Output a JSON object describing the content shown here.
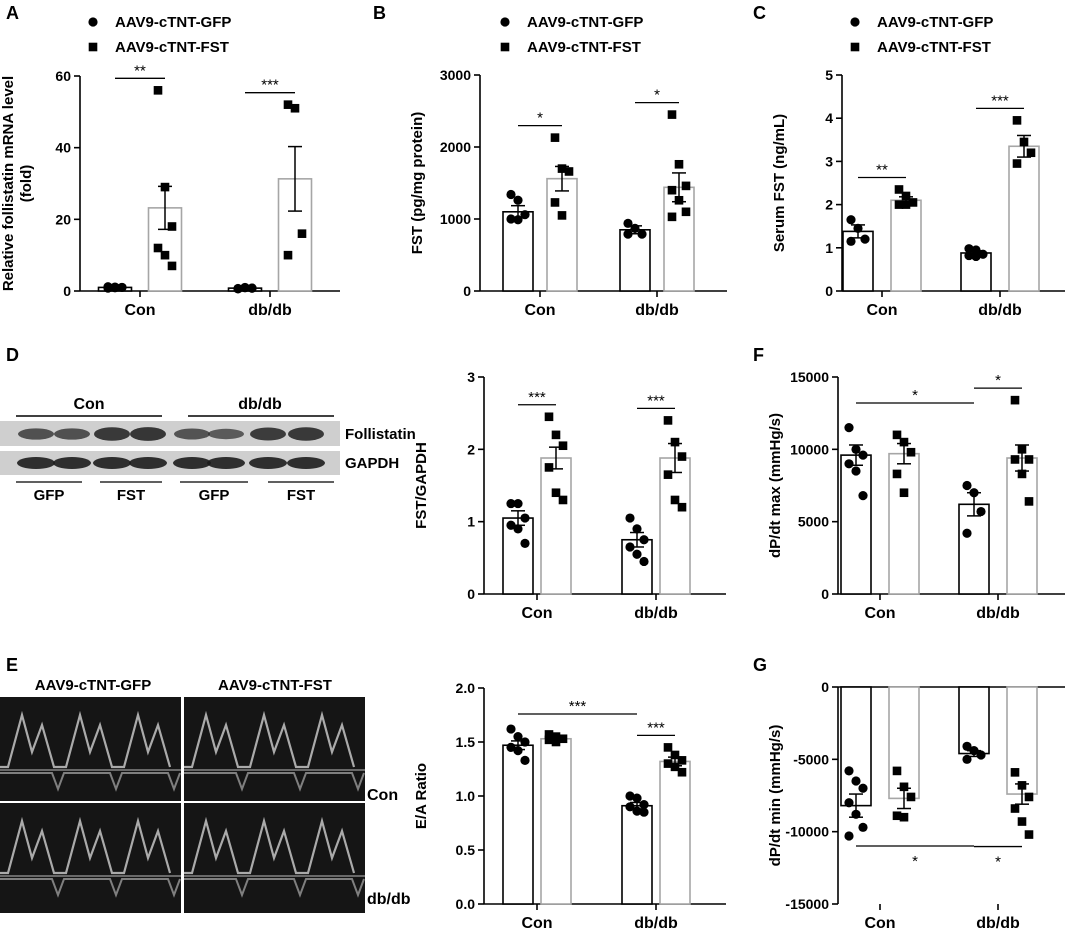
{
  "legend": {
    "gfp": "AAV9-cTNT-GFP",
    "fst": "AAV9-cTNT-FST"
  },
  "colors": {
    "ink": "#000000",
    "gfp_bar": "#000000",
    "fst_bar": "#a6a6a6",
    "blot_bg": "#cfcfcf",
    "echo_bg": "#151515"
  },
  "western": {
    "group_labels": [
      "Con",
      "db/db"
    ],
    "bands": [
      "Follistatin",
      "GAPDH"
    ],
    "lane_labels": [
      "GFP",
      "FST",
      "GFP",
      "FST"
    ]
  },
  "echo": {
    "col_titles": [
      "AAV9-cTNT-GFP",
      "AAV9-cTNT-FST"
    ],
    "row_labels": [
      "Con",
      "db/db"
    ]
  },
  "chart_data": [
    {
      "panel": "A",
      "type": "bar",
      "ylabel": "Relative follistatin mRNA level\n(fold)",
      "categories": [
        "Con",
        "db/db"
      ],
      "ylim": [
        0,
        60
      ],
      "yticks": [
        "0",
        "20",
        "40",
        "60"
      ],
      "legend": true,
      "series": [
        {
          "name": "AAV9-cTNT-GFP",
          "values": [
            1,
            0.8
          ],
          "sem": [
            0.2,
            0.2
          ],
          "points": [
            [
              1.2,
              0.9,
              1.0,
              0.8,
              1.1,
              1.0
            ],
            [
              0.7,
              0.9,
              0.8,
              0.6,
              1.0,
              0.8
            ]
          ]
        },
        {
          "name": "AAV9-cTNT-FST",
          "values": [
            23.2,
            31.3
          ],
          "sem": [
            6.0,
            9.0
          ],
          "points": [
            [
              56,
              29,
              18,
              12,
              10,
              7
            ],
            [
              52,
              51,
              16,
              10
            ]
          ]
        }
      ],
      "significance": [
        {
          "category": "Con",
          "label": "**"
        },
        {
          "category": "db/db",
          "label": "***"
        }
      ]
    },
    {
      "panel": "B",
      "type": "bar",
      "ylabel": "FST (pg/mg protein)",
      "categories": [
        "Con",
        "db/db"
      ],
      "ylim": [
        0,
        3000
      ],
      "yticks": [
        "0",
        "1000",
        "2000",
        "3000"
      ],
      "legend": true,
      "series": [
        {
          "name": "AAV9-cTNT-GFP",
          "values": [
            1100,
            850
          ],
          "sem": [
            85,
            55
          ],
          "points": [
            [
              1340,
              1260,
              1060,
              1000,
              990
            ],
            [
              940,
              870,
              790,
              790
            ]
          ]
        },
        {
          "name": "AAV9-cTNT-FST",
          "values": [
            1560,
            1440
          ],
          "sem": [
            170,
            200
          ],
          "points": [
            [
              2130,
              1700,
              1660,
              1230,
              1050
            ],
            [
              2450,
              1760,
              1460,
              1400,
              1260,
              1100,
              1030
            ]
          ]
        }
      ],
      "significance": [
        {
          "category": "Con",
          "label": "*"
        },
        {
          "category": "db/db",
          "label": "*"
        }
      ]
    },
    {
      "panel": "C",
      "type": "bar",
      "ylabel": "Serum FST (ng/mL)",
      "categories": [
        "Con",
        "db/db"
      ],
      "ylim": [
        0,
        5
      ],
      "yticks": [
        "0",
        "1",
        "2",
        "3",
        "4",
        "5"
      ],
      "legend": true,
      "series": [
        {
          "name": "AAV9-cTNT-GFP",
          "values": [
            1.38,
            0.88
          ],
          "sem": [
            0.15,
            0.05
          ],
          "points": [
            [
              1.65,
              1.45,
              1.2,
              1.15
            ],
            [
              0.98,
              0.95,
              0.85,
              0.82,
              0.8
            ]
          ]
        },
        {
          "name": "AAV9-cTNT-FST",
          "values": [
            2.1,
            3.35
          ],
          "sem": [
            0.08,
            0.25
          ],
          "points": [
            [
              2.35,
              2.2,
              2.05,
              2.0,
              2.0
            ],
            [
              3.95,
              3.45,
              3.2,
              2.95
            ]
          ]
        }
      ],
      "significance": [
        {
          "category": "Con",
          "label": "**"
        },
        {
          "category": "db/db",
          "label": "***"
        }
      ]
    },
    {
      "panel": "D",
      "type": "bar",
      "ylabel": "FST/GAPDH",
      "categories": [
        "Con",
        "db/db"
      ],
      "ylim": [
        0,
        3
      ],
      "yticks": [
        "0",
        "1",
        "2",
        "3"
      ],
      "legend": false,
      "series": [
        {
          "name": "AAV9-cTNT-GFP",
          "values": [
            1.05,
            0.75
          ],
          "sem": [
            0.1,
            0.1
          ],
          "points": [
            [
              1.25,
              1.25,
              1.05,
              0.95,
              0.9,
              0.7
            ],
            [
              1.05,
              0.9,
              0.75,
              0.65,
              0.55,
              0.45
            ]
          ]
        },
        {
          "name": "AAV9-cTNT-FST",
          "values": [
            1.88,
            1.88
          ],
          "sem": [
            0.15,
            0.2
          ],
          "points": [
            [
              2.45,
              2.2,
              2.05,
              1.75,
              1.4,
              1.3
            ],
            [
              2.4,
              2.1,
              1.9,
              1.65,
              1.3,
              1.2
            ]
          ]
        }
      ],
      "significance": [
        {
          "category": "Con",
          "label": "***"
        },
        {
          "category": "db/db",
          "label": "***"
        }
      ]
    },
    {
      "panel": "F",
      "type": "bar",
      "ylabel": "dP/dt max (mmHg/s)",
      "categories": [
        "Con",
        "db/db"
      ],
      "ylim": [
        0,
        15000
      ],
      "yticks": [
        "0",
        "5000",
        "10000",
        "15000"
      ],
      "legend": false,
      "series": [
        {
          "name": "AAV9-cTNT-GFP",
          "values": [
            9600,
            6200
          ],
          "sem": [
            700,
            800
          ],
          "points": [
            [
              11500,
              10000,
              9600,
              9000,
              8500,
              6800
            ],
            [
              7500,
              7000,
              5700,
              4200
            ]
          ]
        },
        {
          "name": "AAV9-cTNT-FST",
          "values": [
            9700,
            9400
          ],
          "sem": [
            700,
            900
          ],
          "points": [
            [
              11000,
              10500,
              9800,
              8300,
              7000
            ],
            [
              13400,
              10000,
              9300,
              9300,
              8300,
              6400
            ]
          ]
        }
      ],
      "significance": [
        {
          "type": "between-groups",
          "label": "*"
        },
        {
          "category": "db/db",
          "label": "*"
        }
      ]
    },
    {
      "panel": "E",
      "type": "bar",
      "ylabel": "E/A Ratio",
      "categories": [
        "Con",
        "db/db"
      ],
      "ylim": [
        0,
        2
      ],
      "yticks": [
        "0.0",
        "0.5",
        "1.0",
        "1.5",
        "2.0"
      ],
      "legend": false,
      "series": [
        {
          "name": "AAV9-cTNT-GFP",
          "values": [
            1.47,
            0.91
          ],
          "sem": [
            0.04,
            0.03
          ],
          "points": [
            [
              1.62,
              1.55,
              1.5,
              1.45,
              1.42,
              1.33
            ],
            [
              1.0,
              0.98,
              0.92,
              0.9,
              0.86,
              0.85
            ]
          ]
        },
        {
          "name": "AAV9-cTNT-FST",
          "values": [
            1.53,
            1.32
          ],
          "sem": [
            0.02,
            0.04
          ],
          "points": [
            [
              1.57,
              1.55,
              1.53,
              1.52,
              1.5
            ],
            [
              1.45,
              1.38,
              1.33,
              1.3,
              1.27,
              1.22
            ]
          ]
        }
      ],
      "significance": [
        {
          "type": "between-groups",
          "label": "***"
        },
        {
          "category": "db/db",
          "label": "***"
        }
      ]
    },
    {
      "panel": "G",
      "type": "bar",
      "ylabel": "dP/dt min (mmHg/s)",
      "categories": [
        "Con",
        "db/db"
      ],
      "ylim": [
        -15000,
        0
      ],
      "yticks": [
        "-15000",
        "-10000",
        "-5000",
        "0"
      ],
      "legend": false,
      "series": [
        {
          "name": "AAV9-cTNT-GFP",
          "values": [
            -8200,
            -4600
          ],
          "sem": [
            800,
            200
          ],
          "points": [
            [
              -5800,
              -6500,
              -7000,
              -8000,
              -8800,
              -9700,
              -10300
            ],
            [
              -4100,
              -4400,
              -4700,
              -5000
            ]
          ]
        },
        {
          "name": "AAV9-cTNT-FST",
          "values": [
            -7700,
            -7400
          ],
          "sem": [
            700,
            700
          ],
          "points": [
            [
              -5800,
              -6900,
              -7600,
              -8900,
              -9000
            ],
            [
              -5900,
              -6800,
              -7600,
              -8400,
              -9300,
              -10200
            ]
          ]
        }
      ],
      "significance": [
        {
          "type": "between-groups",
          "label": "*"
        },
        {
          "category": "db/db",
          "label": "*"
        }
      ]
    }
  ]
}
